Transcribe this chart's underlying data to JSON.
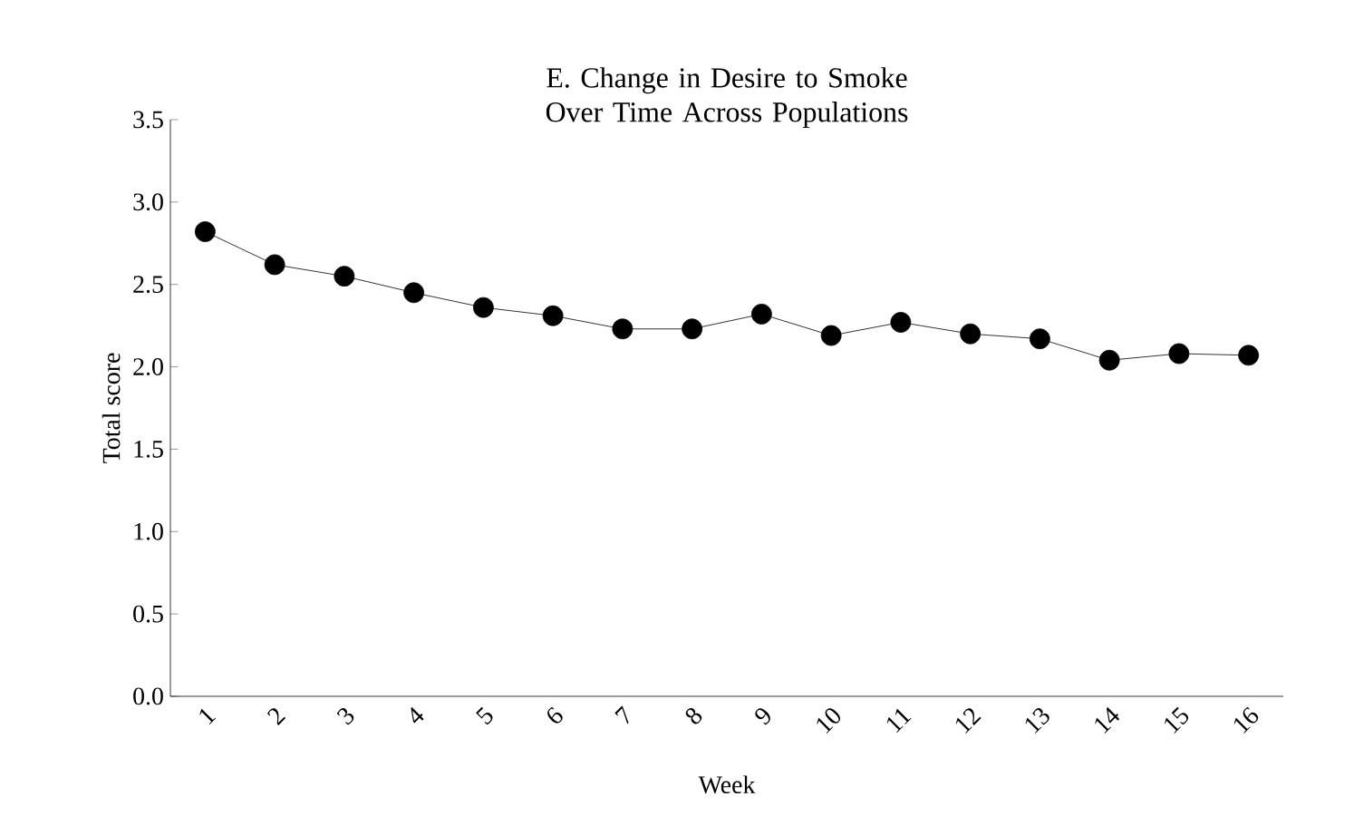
{
  "chart_data": {
    "type": "line",
    "title": "E. Change in Desire to Smoke Over Time Across Populations",
    "xlabel": "Week",
    "ylabel": "Total score",
    "categories": [
      "1",
      "2",
      "3",
      "4",
      "5",
      "6",
      "7",
      "8",
      "9",
      "10",
      "11",
      "12",
      "13",
      "14",
      "15",
      "16"
    ],
    "values": [
      2.82,
      2.62,
      2.55,
      2.45,
      2.36,
      2.31,
      2.23,
      2.23,
      2.32,
      2.19,
      2.27,
      2.2,
      2.17,
      2.04,
      2.08,
      2.07
    ],
    "color": "#000000",
    "marker": "circle",
    "line_style": "solid",
    "ylim": [
      0,
      3.5
    ],
    "yticks": [
      {
        "value": 0,
        "label": "0.0"
      },
      {
        "value": 0.5,
        "label": "0.5"
      },
      {
        "value": 1,
        "label": "1.0"
      },
      {
        "value": 1.5,
        "label": "1.5"
      },
      {
        "value": 2,
        "label": "2.0"
      },
      {
        "value": 2.5,
        "label": "2.5"
      },
      {
        "value": 3,
        "label": "3.0"
      },
      {
        "value": 3.5,
        "label": "3.5"
      }
    ]
  }
}
